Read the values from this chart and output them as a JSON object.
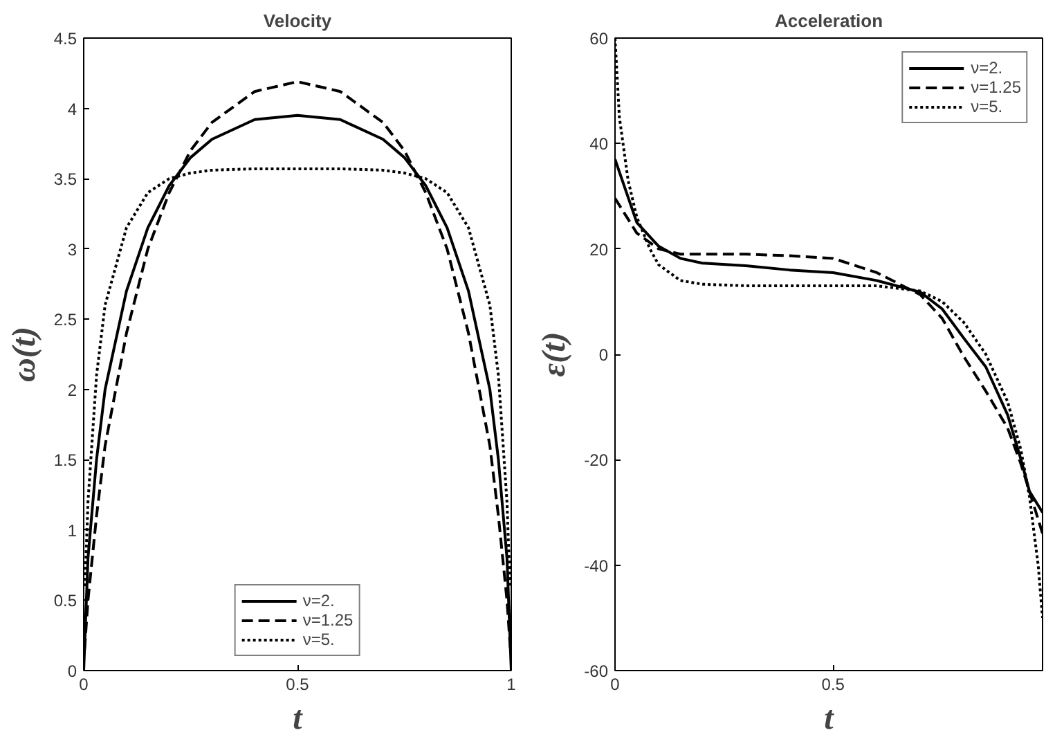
{
  "chart_data": [
    {
      "type": "line",
      "title": "Velocity",
      "xlabel": "t",
      "ylabel": "ω(t)",
      "xlim": [
        0,
        1
      ],
      "xticks": [
        0,
        0.5,
        1
      ],
      "ylim": [
        0,
        4.5
      ],
      "yticks": [
        0,
        0.5,
        1,
        1.5,
        2,
        2.5,
        3,
        3.5,
        4,
        4.5
      ],
      "legend": "bottom",
      "grid": false,
      "x": [
        0,
        0.01,
        0.03,
        0.05,
        0.1,
        0.15,
        0.2,
        0.25,
        0.3,
        0.4,
        0.5,
        0.6,
        0.7,
        0.75,
        0.8,
        0.85,
        0.9,
        0.95,
        0.97,
        0.99,
        1
      ],
      "series": [
        {
          "name": "ν=2.",
          "color": "#000000",
          "line_style": "solid",
          "values": [
            0,
            0.8,
            1.5,
            2.0,
            2.7,
            3.15,
            3.45,
            3.65,
            3.78,
            3.92,
            3.95,
            3.92,
            3.78,
            3.65,
            3.45,
            3.15,
            2.7,
            2.0,
            1.5,
            0.8,
            0
          ]
        },
        {
          "name": "ν=1.25",
          "color": "#000000",
          "line_style": "dashed",
          "x": [
            0.002,
            0.01,
            0.03,
            0.05,
            0.1,
            0.15,
            0.2,
            0.25,
            0.3,
            0.4,
            0.5,
            0.6,
            0.7,
            0.75,
            0.8,
            0.85,
            0.9,
            0.95,
            0.97,
            0.99,
            0.998
          ],
          "values": [
            0.15,
            0.5,
            1.1,
            1.6,
            2.4,
            3.0,
            3.4,
            3.7,
            3.9,
            4.12,
            4.19,
            4.12,
            3.9,
            3.7,
            3.4,
            3.0,
            2.4,
            1.6,
            1.1,
            0.5,
            0.15
          ]
        },
        {
          "name": "ν=5.",
          "color": "#000000",
          "line_style": "dotted",
          "x": [
            0.003,
            0.01,
            0.03,
            0.05,
            0.1,
            0.15,
            0.2,
            0.25,
            0.3,
            0.4,
            0.5,
            0.6,
            0.7,
            0.75,
            0.8,
            0.85,
            0.9,
            0.95,
            0.97,
            0.99,
            0.997
          ],
          "values": [
            0.6,
            1.2,
            2.1,
            2.6,
            3.15,
            3.4,
            3.5,
            3.54,
            3.56,
            3.57,
            3.57,
            3.57,
            3.56,
            3.54,
            3.5,
            3.4,
            3.15,
            2.6,
            2.1,
            1.2,
            0.6
          ]
        }
      ]
    },
    {
      "type": "line",
      "title": "Acceleration",
      "xlabel": "t",
      "ylabel": "ε(t)",
      "xlim": [
        0,
        0.98
      ],
      "xticks": [
        0,
        0.5
      ],
      "ylim": [
        -60,
        60
      ],
      "yticks": [
        -60,
        -40,
        -20,
        0,
        20,
        40,
        60
      ],
      "legend": "top right",
      "grid": false,
      "series": [
        {
          "name": "ν=2.",
          "color": "#000000",
          "line_style": "solid",
          "x": [
            0,
            0.05,
            0.1,
            0.15,
            0.2,
            0.3,
            0.4,
            0.5,
            0.6,
            0.7,
            0.75,
            0.8,
            0.85,
            0.9,
            0.93,
            0.95,
            0.98
          ],
          "values": [
            37,
            25,
            20.5,
            18.2,
            17.3,
            16.8,
            16,
            15.5,
            14,
            11.8,
            8.6,
            3,
            -2.4,
            -11.5,
            -19.8,
            -26,
            -30
          ]
        },
        {
          "name": "ν=1.25",
          "color": "#000000",
          "line_style": "dashed",
          "x": [
            0,
            0.05,
            0.1,
            0.15,
            0.2,
            0.3,
            0.4,
            0.5,
            0.6,
            0.7,
            0.75,
            0.8,
            0.85,
            0.9,
            0.93,
            0.95,
            0.98
          ],
          "values": [
            29.6,
            23,
            20,
            19,
            19,
            19,
            18.7,
            18.2,
            15.5,
            11.3,
            6.8,
            -0.5,
            -7,
            -14,
            -20.7,
            -26,
            -34
          ]
        },
        {
          "name": "ν=5.",
          "color": "#000000",
          "line_style": "dotted",
          "x": [
            0,
            0.01,
            0.03,
            0.05,
            0.08,
            0.1,
            0.15,
            0.2,
            0.3,
            0.5,
            0.6,
            0.7,
            0.75,
            0.8,
            0.85,
            0.9,
            0.93,
            0.95,
            0.97,
            0.98
          ],
          "values": [
            60,
            45,
            33,
            26,
            20,
            17,
            14,
            13.3,
            13,
            13,
            13,
            12,
            10,
            6,
            0,
            -9,
            -18,
            -27,
            -40,
            -50
          ]
        }
      ]
    }
  ]
}
